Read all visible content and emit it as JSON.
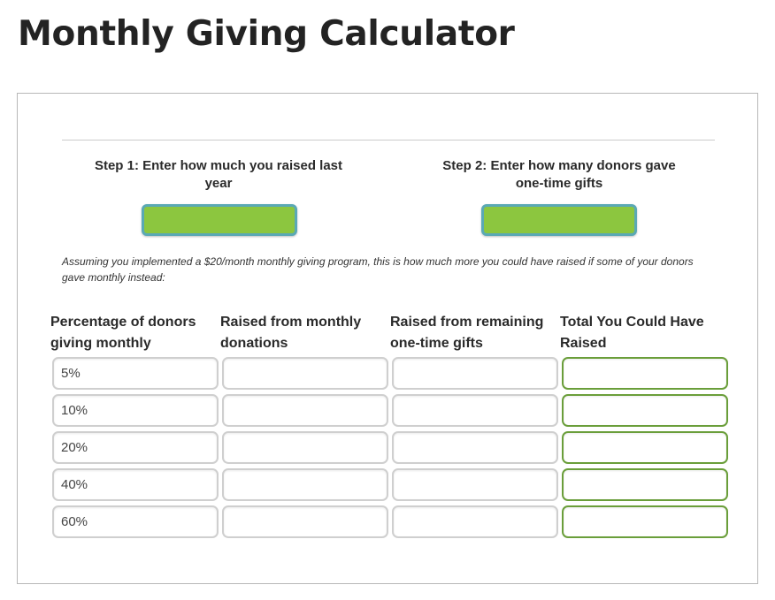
{
  "page": {
    "title": "Monthly Giving Calculator"
  },
  "steps": {
    "step1_label": "Step 1: Enter how much you raised last year",
    "step1_value": "",
    "step2_label": "Step 2: Enter how many donors gave one-time gifts",
    "step2_value": ""
  },
  "assumption_text": "Assuming you implemented a $20/month monthly giving program, this is how much more you could have raised if some of your donors gave monthly instead:",
  "table": {
    "headers": [
      "Percentage of donors giving monthly",
      "Raised from monthly donations",
      "Raised from remaining one-time gifts",
      "Total You Could Have Raised"
    ],
    "rows": [
      {
        "percent": "5%",
        "monthly": "",
        "one_time": "",
        "total": ""
      },
      {
        "percent": "10%",
        "monthly": "",
        "one_time": "",
        "total": ""
      },
      {
        "percent": "20%",
        "monthly": "",
        "one_time": "",
        "total": ""
      },
      {
        "percent": "40%",
        "monthly": "",
        "one_time": "",
        "total": ""
      },
      {
        "percent": "60%",
        "monthly": "",
        "one_time": "",
        "total": ""
      }
    ]
  },
  "colors": {
    "input_green": "#8cc63f",
    "input_border_teal": "#5aa9b5",
    "total_border_green": "#6a9e3a",
    "cell_border_gray": "#cfcfcf"
  }
}
